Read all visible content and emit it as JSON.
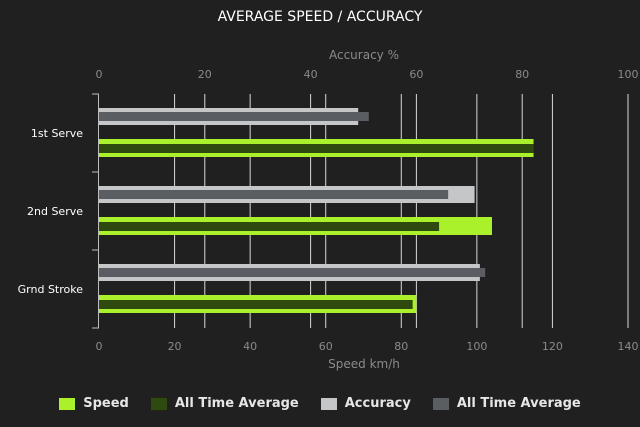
{
  "chart_data": {
    "type": "bar",
    "title": "AVERAGE SPEED / ACCURACY",
    "categories": [
      "1st Serve",
      "2nd Serve",
      "Grnd Stroke"
    ],
    "speed_axis": {
      "label": "Speed km/h",
      "range": [
        0,
        140
      ],
      "ticks": [
        "0",
        "20",
        "40",
        "60",
        "80",
        "100",
        "120",
        "140"
      ]
    },
    "accuracy_axis": {
      "label": "Accuracy %",
      "range": [
        0,
        100
      ],
      "ticks": [
        "0",
        "20",
        "40",
        "60",
        "80",
        "100"
      ]
    },
    "series": [
      {
        "name": "Speed",
        "axis": "speed",
        "values": [
          115,
          104,
          84
        ],
        "color": "#aaf12b"
      },
      {
        "name": "All Time Average",
        "axis": "speed",
        "values": [
          115,
          90,
          83
        ],
        "color": "#2f4a0f"
      },
      {
        "name": "Accuracy",
        "axis": "accuracy",
        "values": [
          49,
          71,
          72
        ],
        "color": "#c4c6c8"
      },
      {
        "name": "All Time Average",
        "axis": "accuracy",
        "values": [
          51,
          66,
          73
        ],
        "color": "#5a5d62"
      }
    ],
    "grid": true,
    "legend_position": "bottom"
  }
}
